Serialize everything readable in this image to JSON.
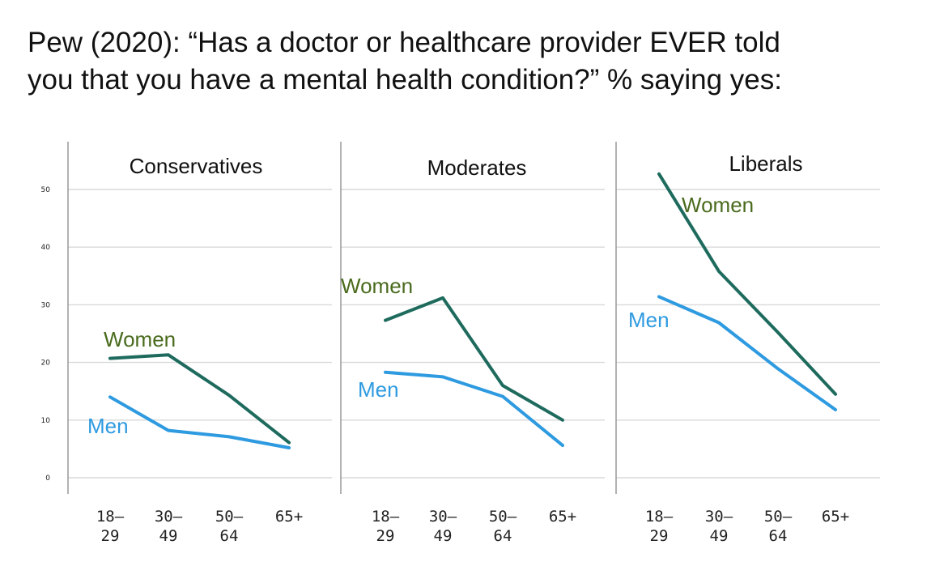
{
  "title": {
    "line1": "Pew (2020): “Has a doctor or healthcare provider EVER told",
    "line2": "you that you have a mental health condition?” % saying yes:"
  },
  "colors": {
    "women": "#1e6b5e",
    "men": "#2e9ae0",
    "women_label": "#4a6b1e",
    "men_label": "#2e9ae0"
  },
  "chart_data": {
    "type": "line",
    "categories": [
      [
        "18–",
        "29"
      ],
      [
        "30–",
        "49"
      ],
      [
        "50–",
        "64"
      ],
      [
        "65+",
        ""
      ]
    ],
    "y_ticks": [
      "0",
      "10",
      "20",
      "30",
      "40",
      "50"
    ],
    "ylim": [
      0,
      55
    ],
    "grid": true,
    "panels": [
      {
        "title": "Conservatives",
        "series": [
          {
            "name": "Women",
            "values": [
              20.7,
              21.3,
              14.3,
              6.1
            ]
          },
          {
            "name": "Men",
            "values": [
              14.0,
              8.2,
              7.1,
              5.2
            ]
          }
        ]
      },
      {
        "title": "Moderates",
        "series": [
          {
            "name": "Women",
            "values": [
              27.3,
              31.2,
              16.0,
              10.0
            ]
          },
          {
            "name": "Men",
            "values": [
              18.3,
              17.5,
              14.1,
              5.6
            ]
          }
        ]
      },
      {
        "title": "Liberals",
        "series": [
          {
            "name": "Women",
            "values": [
              52.7,
              35.8,
              25.2,
              14.5
            ]
          },
          {
            "name": "Men",
            "values": [
              31.4,
              26.9,
              18.9,
              11.8
            ]
          }
        ]
      }
    ]
  }
}
